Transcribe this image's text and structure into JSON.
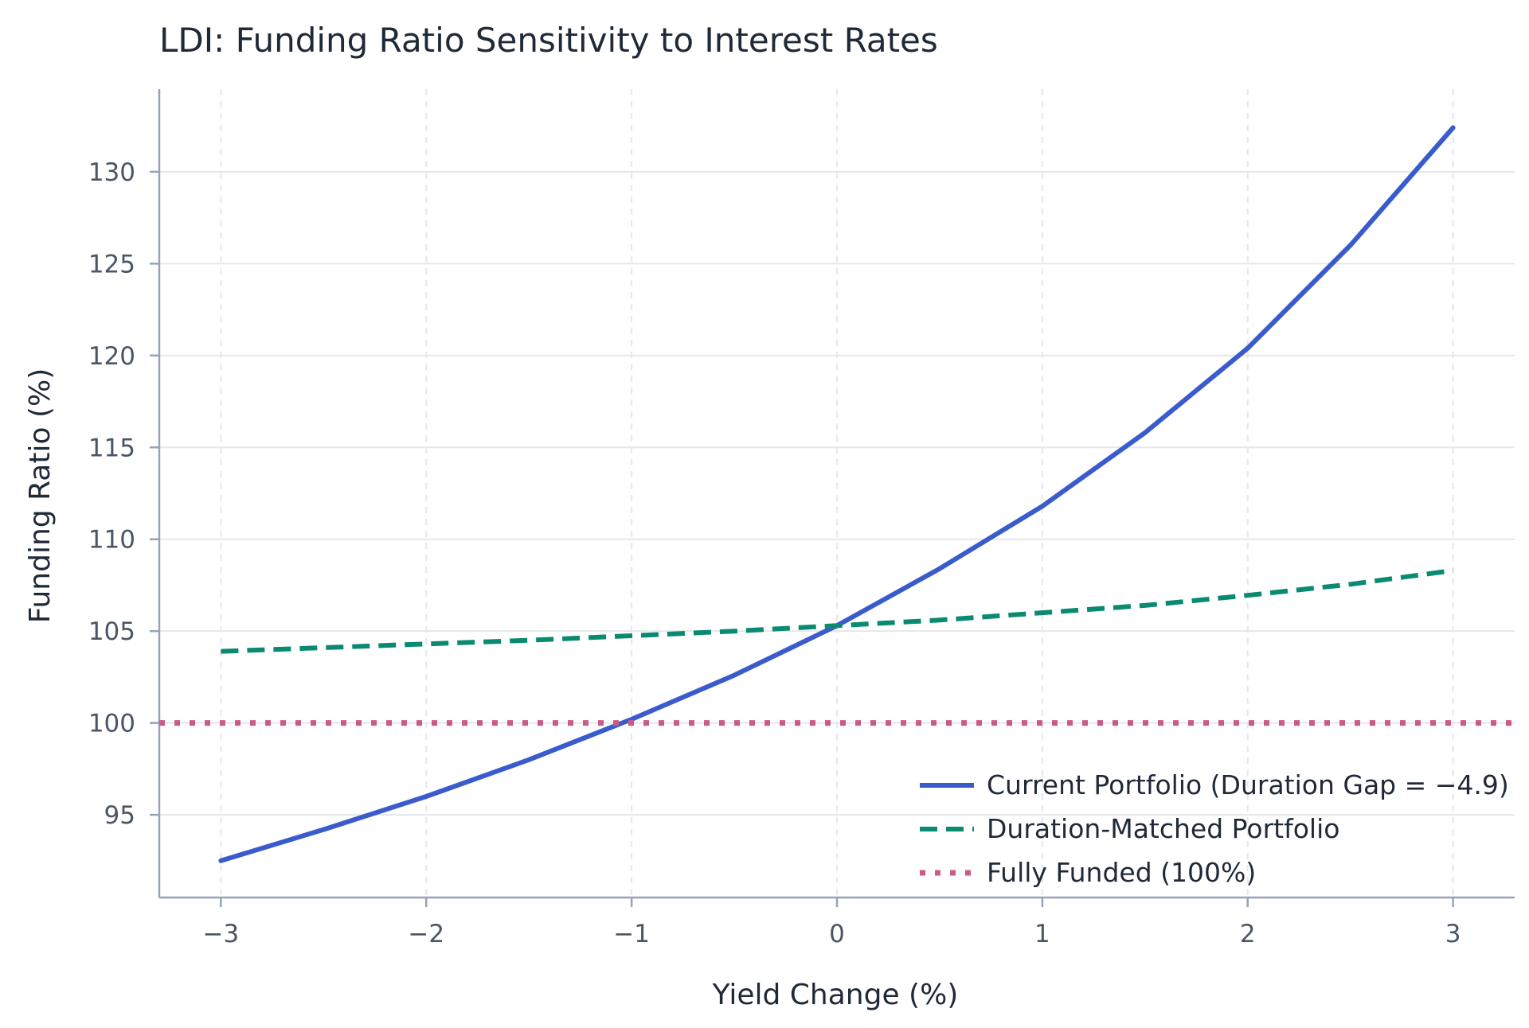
{
  "chart_data": {
    "type": "line",
    "title": "LDI: Funding Ratio Sensitivity to Interest Rates",
    "xlabel": "Yield Change (%)",
    "ylabel": "Funding Ratio (%)",
    "xlim": [
      -3.3,
      3.3
    ],
    "ylim": [
      90.5,
      134.5
    ],
    "x_ticks": [
      -3,
      -2,
      -1,
      0,
      1,
      2,
      3
    ],
    "x_tick_labels": [
      "−3",
      "−2",
      "−1",
      "0",
      "1",
      "2",
      "3"
    ],
    "y_ticks": [
      95,
      100,
      105,
      110,
      115,
      120,
      125,
      130
    ],
    "y_tick_labels": [
      "95",
      "100",
      "105",
      "110",
      "115",
      "120",
      "125",
      "130"
    ],
    "grid": true,
    "legend_position": "lower-right",
    "series": [
      {
        "name": "Current Portfolio (Duration Gap = −4.9)",
        "style": "solid",
        "color": "#3a5bcc",
        "x": [
          -3,
          -2.5,
          -2,
          -1.5,
          -1,
          -0.5,
          0,
          0.5,
          1,
          1.5,
          2,
          2.5,
          3
        ],
        "y": [
          92.5,
          94.2,
          96.0,
          98.0,
          100.2,
          102.6,
          105.3,
          108.4,
          111.8,
          115.8,
          120.4,
          126.0,
          132.4
        ]
      },
      {
        "name": "Duration-Matched Portfolio",
        "style": "dashed",
        "color": "#0b8a72",
        "x": [
          -3,
          -2.5,
          -2,
          -1.5,
          -1,
          -0.5,
          0,
          0.5,
          1,
          1.5,
          2,
          2.5,
          3
        ],
        "y": [
          103.9,
          104.1,
          104.3,
          104.5,
          104.75,
          105.0,
          105.3,
          105.6,
          106.0,
          106.4,
          106.95,
          107.55,
          108.3
        ]
      },
      {
        "name": "Fully Funded (100%)",
        "style": "dotted",
        "color": "#cc5a88",
        "x": [
          -3.3,
          3.3
        ],
        "y": [
          100,
          100
        ]
      }
    ]
  }
}
